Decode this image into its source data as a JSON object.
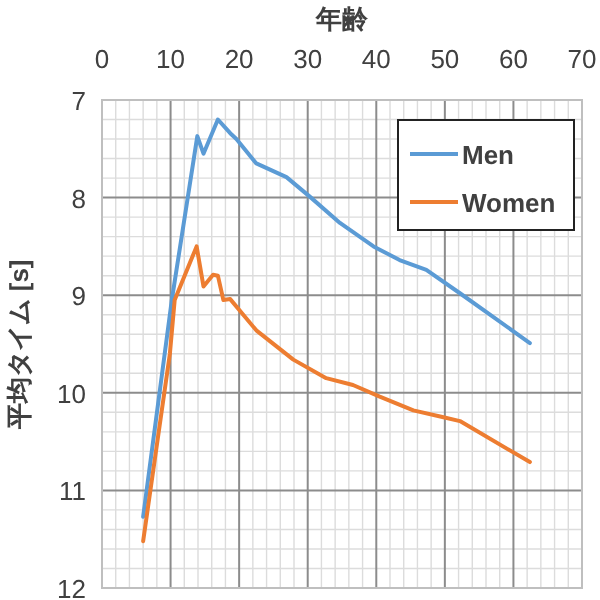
{
  "chart_data": {
    "type": "line",
    "xlabel": "年齢",
    "ylabel": "平均タイム [s]",
    "xlim": [
      0,
      70
    ],
    "xticks": [
      0,
      10,
      20,
      30,
      40,
      50,
      60,
      70
    ],
    "ylim": [
      12,
      7
    ],
    "yticks": [
      7,
      8,
      9,
      10,
      11,
      12
    ],
    "grid": true,
    "legend": "top right",
    "series": [
      {
        "name": "Men",
        "color": "#5b9bd5",
        "x": [
          6.0,
          10.2,
          13.9,
          14.8,
          16.9,
          18.7,
          19.6,
          22.5,
          26.9,
          30.3,
          34.7,
          39.6,
          43.4,
          47.3,
          52.2,
          62.4
        ],
        "values": [
          11.27,
          9.04,
          7.37,
          7.55,
          7.2,
          7.34,
          7.4,
          7.65,
          7.79,
          7.99,
          8.26,
          8.5,
          8.64,
          8.74,
          8.98,
          9.49
        ]
      },
      {
        "name": "Women",
        "color": "#ed7d31",
        "x": [
          6.0,
          9.9,
          10.6,
          13.8,
          14.8,
          16.2,
          16.9,
          17.7,
          18.7,
          22.5,
          27.9,
          32.7,
          36.6,
          40.5,
          45.4,
          49.8,
          52.2,
          62.4
        ],
        "values": [
          11.52,
          9.6,
          9.05,
          8.5,
          8.91,
          8.79,
          8.8,
          9.05,
          9.04,
          9.36,
          9.66,
          9.85,
          9.92,
          10.04,
          10.18,
          10.25,
          10.29,
          10.71
        ]
      }
    ]
  }
}
